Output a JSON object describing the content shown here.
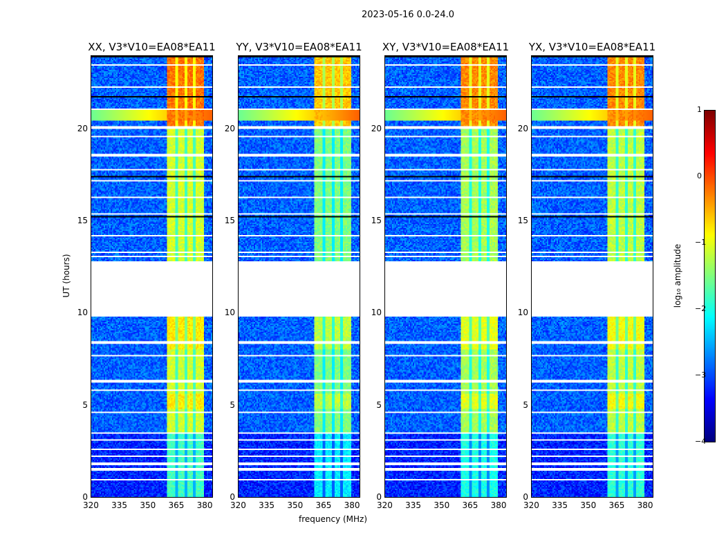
{
  "chart_data": {
    "type": "heatmap",
    "title": "2023-05-16 0.0-24.0",
    "xlabel": "frequency (MHz)",
    "ylabel": "UT (hours)",
    "xlim": [
      320,
      384.5
    ],
    "ylim": [
      0,
      24
    ],
    "xticks": [
      320,
      335,
      350,
      365,
      380
    ],
    "yticks": [
      0,
      5,
      10,
      15,
      20
    ],
    "panels": [
      {
        "title": "XX, V3*V10=EA08*EA11",
        "rfi_level_day": -1.1,
        "rfi_level_evening": -0.2
      },
      {
        "title": "YY, V3*V10=EA08*EA11",
        "rfi_level_day": -1.5,
        "rfi_level_evening": -0.6
      },
      {
        "title": "XY, V3*V10=EA08*EA11",
        "rfi_level_day": -1.3,
        "rfi_level_evening": -0.3
      },
      {
        "title": "YX, V3*V10=EA08*EA11",
        "rfi_level_day": -1.2,
        "rfi_level_evening": -0.3
      }
    ],
    "background_level": -2.9,
    "rfi_band_mhz": [
      360.5,
      380
    ],
    "no_data_hours": [
      [
        9.8,
        12.8
      ]
    ],
    "flagged_hours": [
      0.95,
      1.5,
      1.8,
      2.2,
      2.6,
      3.1,
      3.5,
      4.6,
      5.8,
      6.3,
      7.7,
      8.4,
      13.1,
      13.3,
      14.2,
      15.4,
      16.3,
      17.2,
      17.8,
      18.6,
      19.6,
      20.05,
      20.1,
      21.1,
      22.3,
      23.5
    ],
    "colorbar": {
      "label": "log₁₀ amplitude",
      "range": [
        -4,
        1
      ],
      "ticks": [
        "1",
        "0",
        "−1",
        "−2",
        "−3",
        "−4"
      ],
      "colormap": "jet"
    }
  }
}
